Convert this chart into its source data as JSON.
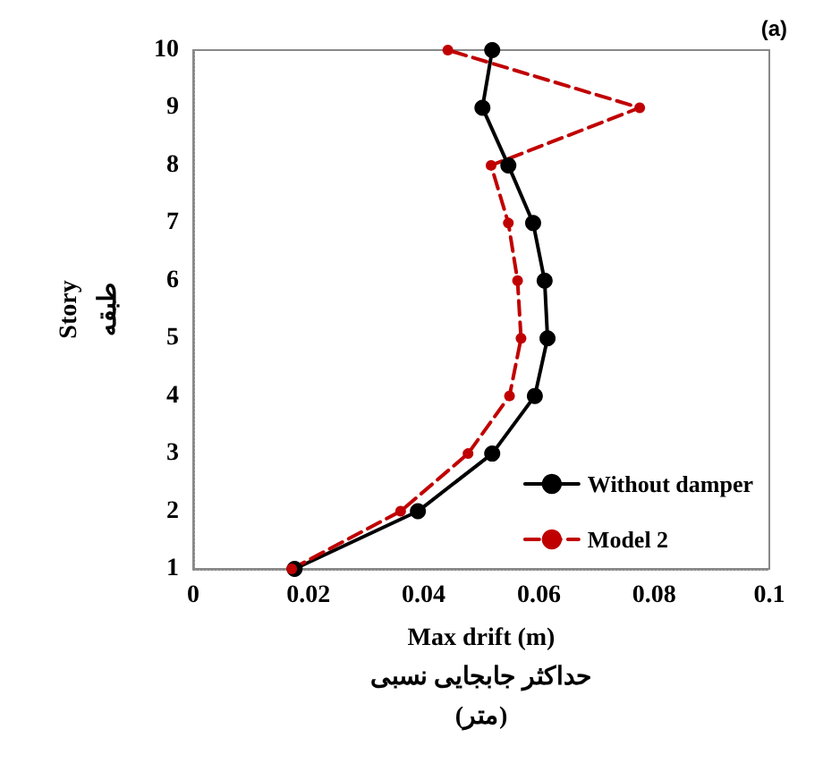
{
  "chart_data": {
    "type": "line",
    "xlabel": "Max drift (m)\nحداکثر جابجایی نسبی\n(متر)",
    "ylabel": "Story\nطبقه",
    "annotations": [
      "(a)"
    ],
    "x": [
      1,
      2,
      3,
      4,
      5,
      6,
      7,
      8,
      9,
      10
    ],
    "orientation": "horizontal",
    "series": [
      {
        "name": "Without damper",
        "color": "#000000",
        "line_style": "solid",
        "values": [
          0.0176,
          0.039,
          0.0519,
          0.0593,
          0.0615,
          0.061,
          0.059,
          0.0547,
          0.0502,
          0.0519
        ]
      },
      {
        "name": "Model 2",
        "color": "#c00000",
        "line_style": "dashed",
        "values": [
          0.0171,
          0.036,
          0.0477,
          0.0549,
          0.0569,
          0.0563,
          0.0547,
          0.0517,
          0.0775,
          0.0442
        ]
      }
    ],
    "xlim": [
      0,
      0.1
    ],
    "xticks": [
      0,
      0.02,
      0.04,
      0.06,
      0.08,
      {
        "value": 0.1,
        "label": "0.1"
      }
    ],
    "ylim": [
      1,
      10
    ],
    "yticks": [
      1,
      2,
      3,
      4,
      5,
      6,
      7,
      8,
      9,
      10
    ],
    "grid": false,
    "legend": "bottom right",
    "marker": "circle"
  }
}
